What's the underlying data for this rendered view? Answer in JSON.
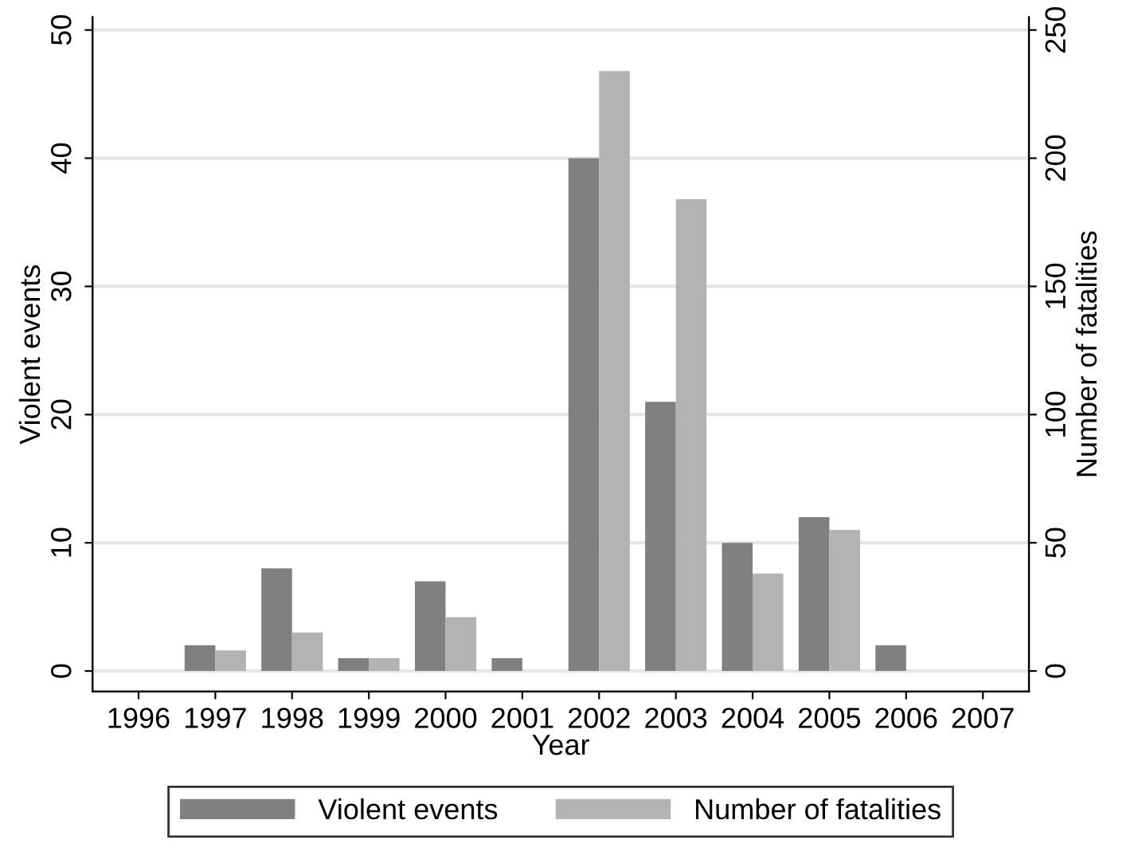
{
  "chart_data": {
    "type": "bar",
    "xlabel": "Year",
    "ylabel": "Violent events",
    "y2label": "Number of fatalities",
    "categories": [
      "1996",
      "1997",
      "1998",
      "1999",
      "2000",
      "2001",
      "2002",
      "2003",
      "2004",
      "2005",
      "2006",
      "2007"
    ],
    "series": [
      {
        "name": "Violent events",
        "color": "#808080",
        "values": [
          null,
          2,
          8,
          1,
          7,
          1,
          40,
          21,
          10,
          12,
          2,
          null
        ]
      },
      {
        "name": "Number of fatalities",
        "color": "#b3b3b3",
        "axis": "y2",
        "values": [
          null,
          8,
          15,
          5,
          21,
          null,
          234,
          184,
          38,
          55,
          null,
          null
        ]
      }
    ],
    "ylim": [
      -1.6,
      51
    ],
    "yticks": [
      0,
      10,
      20,
      30,
      40,
      50
    ],
    "y2lim": [
      -8,
      255
    ],
    "y2ticks": [
      0,
      50,
      100,
      150,
      200,
      250
    ],
    "grid": "y",
    "legend": "bottom"
  }
}
